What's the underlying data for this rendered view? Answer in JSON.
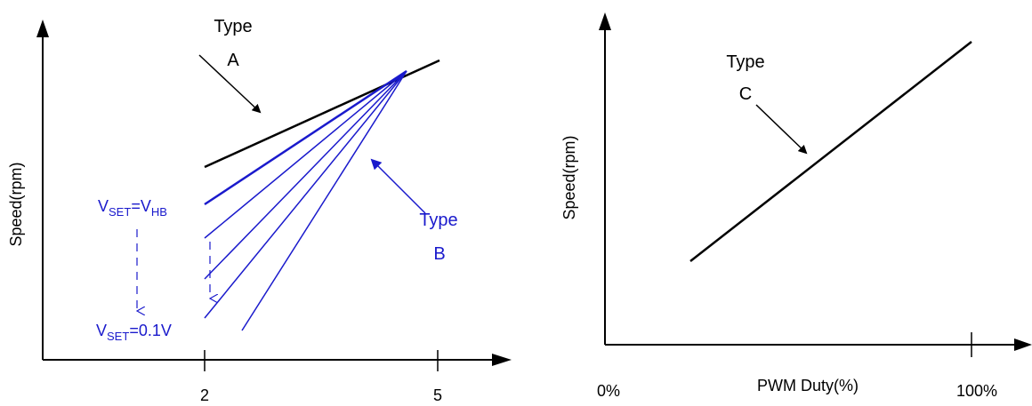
{
  "left_chart": {
    "ylabel": "Speed(rpm)",
    "x_ticks": [
      "2",
      "5"
    ],
    "type_a": {
      "line1": "Type",
      "line2": "A"
    },
    "type_b": {
      "line1": "Type",
      "line2": "B"
    },
    "vset_top": {
      "v": "V",
      "sub1": "SET",
      "eq": "=V",
      "sub2": "HB"
    },
    "vset_bottom": {
      "v": "V",
      "sub1": "SET",
      "eq": "=0.1V"
    }
  },
  "right_chart": {
    "ylabel": "Speed(rpm)",
    "xlabel": "PWM Duty(%)",
    "x_tick_left": "0%",
    "x_tick_right": "100%",
    "type_c": {
      "line1": "Type",
      "line2": "C"
    }
  },
  "colors": {
    "axis": "#000000",
    "type_a": "#000000",
    "type_b": "#1a1acc",
    "type_c": "#000000"
  }
}
